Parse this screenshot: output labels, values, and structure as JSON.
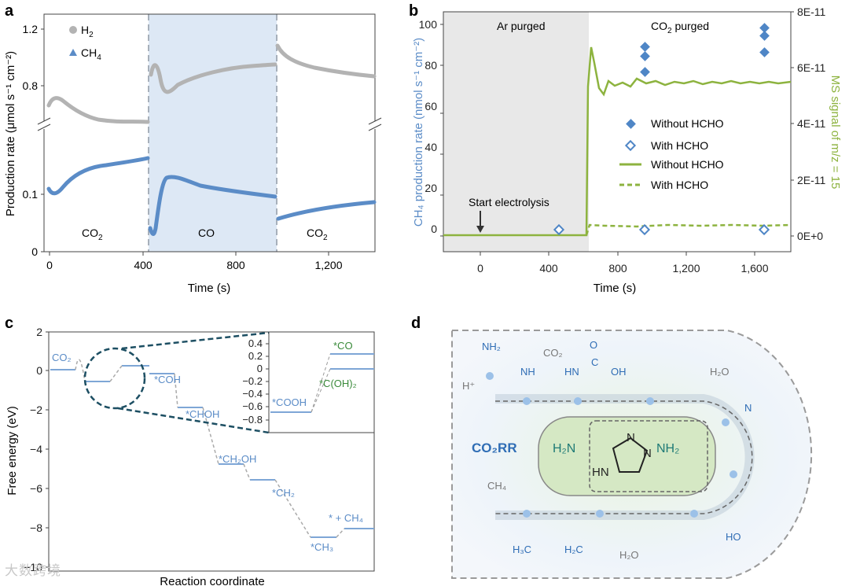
{
  "colors": {
    "h2": "#b3b3b3",
    "ch4": "#5b8cc7",
    "ms": "#8db33f",
    "ar_bg": "#e8e8e8",
    "co_bg": "#dde8f5",
    "dark_teal": "#1d4f63",
    "green_text": "#3a8a3a"
  },
  "panel_a": {
    "label": "a",
    "ylabel_main": "Production rate (",
    "ylabel_unit": "μmol s⁻¹ cm⁻²)",
    "xlabel": "Time (s)",
    "xticks": [
      "0",
      "400",
      "800",
      "1,200"
    ],
    "yticks_top": [
      "1.2",
      "0.8"
    ],
    "yticks_bottom": [
      "0.1",
      "0"
    ],
    "legend": {
      "h2": "H",
      "h2_sub": "2",
      "ch4": "CH",
      "ch4_sub": "4"
    },
    "regions": [
      {
        "label": "CO",
        "sub": "2"
      },
      {
        "label": "CO",
        "sub": ""
      },
      {
        "label": "CO",
        "sub": "2"
      }
    ]
  },
  "panel_b": {
    "label": "b",
    "ylabel_left": "CH₄ production rate (nmol s⁻¹ cm⁻²)",
    "ylabel_right": "MS signal of m/z = 15",
    "xlabel": "Time (s)",
    "xticks": [
      "0",
      "400",
      "800",
      "1,200",
      "1,600"
    ],
    "yticks_left": [
      "0",
      "20",
      "40",
      "60",
      "80",
      "100"
    ],
    "yticks_right": [
      "0E+0",
      "2E-11",
      "4E-11",
      "6E-11",
      "8E-11"
    ],
    "ar_label": "Ar purged",
    "co2_label": "CO",
    "co2_label_sub": "2",
    "co2_label_tail": " purged",
    "start_label": "Start electrolysis",
    "legend": [
      "Without HCHO",
      "With HCHO",
      "Without HCHO",
      "With HCHO"
    ]
  },
  "panel_c": {
    "label": "c",
    "ylabel": "Free energy (eV)",
    "xlabel": "Reaction coordinate",
    "yticks": [
      "2",
      "0",
      "−2",
      "−4",
      "−6",
      "−8",
      "−10"
    ],
    "inset_yticks": [
      "0.4",
      "0.2",
      "0",
      "−0.2",
      "−0.4",
      "−0.6",
      "−0.8"
    ],
    "species": [
      "CO₂",
      "*COH",
      "*CHOH",
      "*CH₂OH",
      "*CH₂",
      "*CH₃",
      "* + CH₄"
    ],
    "inset_species": [
      "*COOH",
      "*CO",
      "*C(OH)₂"
    ]
  },
  "panel_d": {
    "label": "d",
    "center_label": "CO₂RR",
    "molecules": [
      "NH₂",
      "CO₂",
      "NH",
      "H⁺",
      "HN",
      "O",
      "C",
      "OH",
      "H₂O",
      "N",
      "HO",
      "CH₄",
      "H₃C",
      "H₂C",
      "H₂O",
      "H₂N",
      "NH₂",
      "HN",
      "N",
      "N"
    ]
  },
  "watermark": "大数跨境"
}
